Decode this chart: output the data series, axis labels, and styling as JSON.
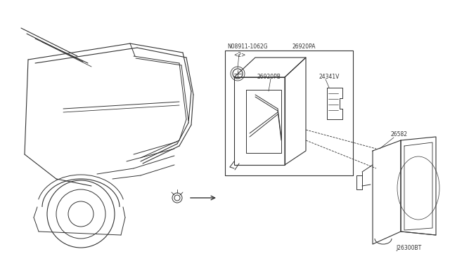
{
  "bg_color": "#ffffff",
  "line_color": "#333333",
  "diagram_id": "J26300BT",
  "label_26920PA": "26920PA",
  "label_N08911": "N08911-1062G",
  "label_N08911b": "<2>",
  "label_26920PB": "26920PB",
  "label_24341V": "24341V",
  "label_26582": "26582",
  "font_size": 5.5
}
